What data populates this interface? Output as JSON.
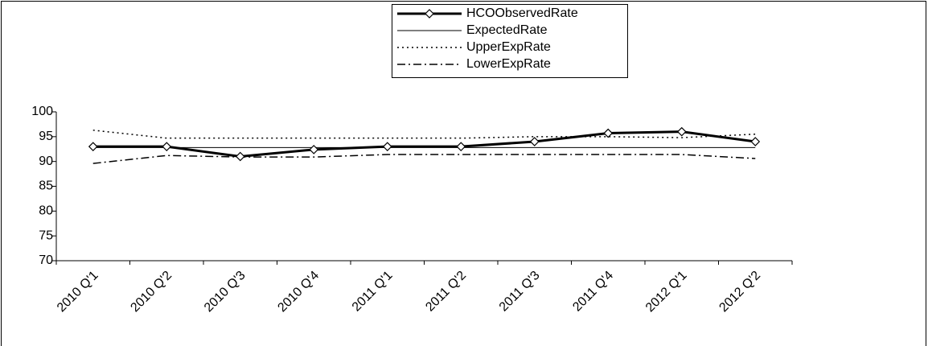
{
  "chart_data": {
    "type": "line",
    "categories": [
      "2010 Q'1",
      "2010 Q'2",
      "2010 Q'3",
      "2010 Q'4",
      "2011 Q'1",
      "2011 Q'2",
      "2011 Q'3",
      "2011 Q'4",
      "2012 Q'1",
      "2012 Q'2"
    ],
    "ylim": [
      70,
      100
    ],
    "yticks": [
      70,
      75,
      80,
      85,
      90,
      95,
      100
    ],
    "grid": false,
    "legend": "top",
    "series": [
      {
        "name": "HCOObservedRate",
        "color": "#000000",
        "line_style": "solid",
        "line_width": 3,
        "marker": "diamond",
        "values": [
          93,
          93,
          91,
          92.4,
          93,
          93,
          94,
          95.7,
          96,
          94
        ]
      },
      {
        "name": "ExpectedRate",
        "color": "#000000",
        "line_style": "solid",
        "line_width": 1,
        "marker": "none",
        "values": [
          92.8,
          92.8,
          92.8,
          92.8,
          92.8,
          92.8,
          92.8,
          92.8,
          92.8,
          92.8
        ]
      },
      {
        "name": "UpperExpRate",
        "color": "#000000",
        "line_style": "dotted",
        "line_width": 1.5,
        "marker": "none",
        "values": [
          96.3,
          94.7,
          94.7,
          94.7,
          94.7,
          94.7,
          95,
          95,
          94.8,
          95.5
        ]
      },
      {
        "name": "LowerExpRate",
        "color": "#000000",
        "line_style": "dashdot",
        "line_width": 1.5,
        "marker": "none",
        "values": [
          89.6,
          91.2,
          90.9,
          90.9,
          91.4,
          91.4,
          91.4,
          91.4,
          91.4,
          90.6
        ]
      }
    ]
  }
}
